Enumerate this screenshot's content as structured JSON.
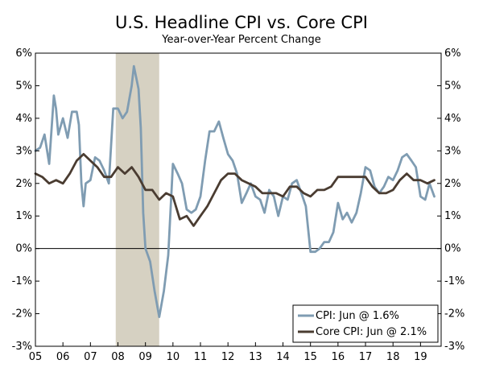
{
  "chart_data": {
    "type": "line",
    "title": "U.S. Headline CPI vs. Core CPI",
    "subtitle": "Year-over-Year Percent Change",
    "xlabel": "",
    "ylabel": "",
    "xlim": [
      2005.0,
      2019.75
    ],
    "ylim": [
      -3,
      6
    ],
    "y_ticks": [
      6,
      5,
      4,
      3,
      2,
      1,
      0,
      -1,
      -2,
      -3
    ],
    "y_tick_labels": [
      "6%",
      "5%",
      "4%",
      "3%",
      "2%",
      "1%",
      "0%",
      "-1%",
      "-2%",
      "-3%"
    ],
    "x_tick_labels": [
      "05",
      "06",
      "07",
      "08",
      "09",
      "10",
      "11",
      "12",
      "13",
      "14",
      "15",
      "16",
      "17",
      "18",
      "19"
    ],
    "recession_shade": {
      "start": 2007.92,
      "end": 2009.5
    },
    "legend": {
      "position": "bottom-right"
    },
    "series": [
      {
        "name": "CPI: Jun @ 1.6%",
        "color": "#7f9cb2",
        "x": [
          2005.0,
          2005.17,
          2005.33,
          2005.5,
          2005.67,
          2005.75,
          2005.83,
          2006.0,
          2006.17,
          2006.33,
          2006.5,
          2006.58,
          2006.67,
          2006.75,
          2006.83,
          2007.0,
          2007.17,
          2007.33,
          2007.5,
          2007.67,
          2007.83,
          2008.0,
          2008.17,
          2008.33,
          2008.5,
          2008.58,
          2008.75,
          2008.83,
          2008.92,
          2009.0,
          2009.17,
          2009.33,
          2009.5,
          2009.67,
          2009.83,
          2010.0,
          2010.17,
          2010.33,
          2010.5,
          2010.67,
          2010.83,
          2011.0,
          2011.17,
          2011.33,
          2011.5,
          2011.67,
          2011.83,
          2012.0,
          2012.17,
          2012.33,
          2012.5,
          2012.67,
          2012.83,
          2013.0,
          2013.17,
          2013.33,
          2013.5,
          2013.67,
          2013.83,
          2014.0,
          2014.17,
          2014.33,
          2014.5,
          2014.67,
          2014.83,
          2015.0,
          2015.17,
          2015.33,
          2015.5,
          2015.67,
          2015.83,
          2016.0,
          2016.17,
          2016.33,
          2016.5,
          2016.67,
          2016.83,
          2017.0,
          2017.17,
          2017.33,
          2017.5,
          2017.67,
          2017.83,
          2018.0,
          2018.17,
          2018.33,
          2018.5,
          2018.67,
          2018.83,
          2019.0,
          2019.17,
          2019.33,
          2019.5
        ],
        "values": [
          3.0,
          3.1,
          3.5,
          2.6,
          4.7,
          4.3,
          3.5,
          4.0,
          3.4,
          4.2,
          4.2,
          3.8,
          2.0,
          1.3,
          2.0,
          2.1,
          2.8,
          2.7,
          2.4,
          2.0,
          4.3,
          4.3,
          4.0,
          4.2,
          5.0,
          5.6,
          4.9,
          3.7,
          1.1,
          0.0,
          -0.4,
          -1.3,
          -2.1,
          -1.3,
          -0.2,
          2.6,
          2.3,
          2.0,
          1.2,
          1.1,
          1.2,
          1.6,
          2.7,
          3.6,
          3.6,
          3.9,
          3.4,
          2.9,
          2.7,
          2.3,
          1.4,
          1.7,
          2.0,
          1.6,
          1.5,
          1.1,
          1.8,
          1.6,
          1.0,
          1.6,
          1.5,
          2.0,
          2.1,
          1.7,
          1.3,
          -0.1,
          -0.1,
          0.0,
          0.2,
          0.2,
          0.5,
          1.4,
          0.9,
          1.1,
          0.8,
          1.1,
          1.7,
          2.5,
          2.4,
          1.9,
          1.7,
          1.9,
          2.2,
          2.1,
          2.4,
          2.8,
          2.9,
          2.7,
          2.5,
          1.6,
          1.5,
          2.0,
          1.6
        ]
      },
      {
        "name": "Core CPI: Jun @ 2.1%",
        "color": "#4a3c31",
        "x": [
          2005.0,
          2005.25,
          2005.5,
          2005.75,
          2006.0,
          2006.25,
          2006.5,
          2006.75,
          2007.0,
          2007.25,
          2007.5,
          2007.75,
          2008.0,
          2008.25,
          2008.5,
          2008.75,
          2009.0,
          2009.25,
          2009.5,
          2009.75,
          2010.0,
          2010.25,
          2010.5,
          2010.75,
          2011.0,
          2011.25,
          2011.5,
          2011.75,
          2012.0,
          2012.25,
          2012.5,
          2012.75,
          2013.0,
          2013.25,
          2013.5,
          2013.75,
          2014.0,
          2014.25,
          2014.5,
          2014.75,
          2015.0,
          2015.25,
          2015.5,
          2015.75,
          2016.0,
          2016.25,
          2016.5,
          2016.75,
          2017.0,
          2017.25,
          2017.5,
          2017.75,
          2018.0,
          2018.25,
          2018.5,
          2018.75,
          2019.0,
          2019.25,
          2019.5
        ],
        "values": [
          2.3,
          2.2,
          2.0,
          2.1,
          2.0,
          2.3,
          2.7,
          2.9,
          2.7,
          2.5,
          2.2,
          2.2,
          2.5,
          2.3,
          2.5,
          2.2,
          1.8,
          1.8,
          1.5,
          1.7,
          1.6,
          0.9,
          1.0,
          0.7,
          1.0,
          1.3,
          1.7,
          2.1,
          2.3,
          2.3,
          2.1,
          2.0,
          1.9,
          1.7,
          1.7,
          1.7,
          1.6,
          1.9,
          1.9,
          1.7,
          1.6,
          1.8,
          1.8,
          1.9,
          2.2,
          2.2,
          2.2,
          2.2,
          2.2,
          1.9,
          1.7,
          1.7,
          1.8,
          2.1,
          2.3,
          2.1,
          2.1,
          2.0,
          2.1
        ]
      }
    ]
  }
}
